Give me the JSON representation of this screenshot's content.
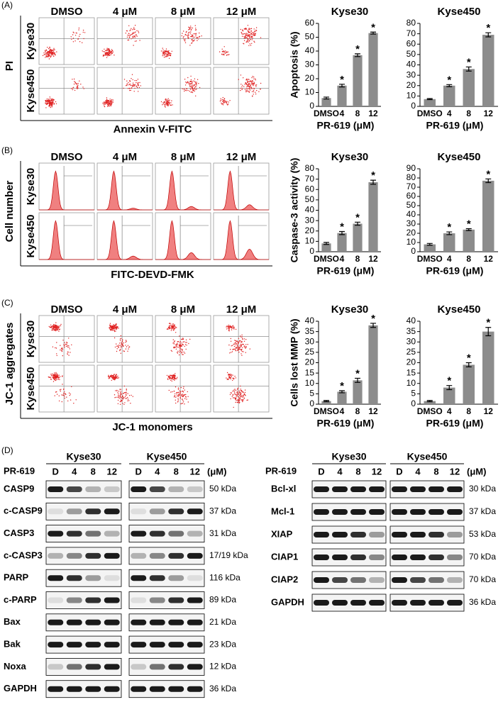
{
  "flow_panels": [
    {
      "label": "(A)",
      "conditions": [
        "DMSO",
        "4 μM",
        "8 μM",
        "12 μM"
      ],
      "cell_lines": [
        "Kyse30",
        "Kyse450"
      ],
      "y_label": "PI",
      "x_label": "Annexin V-FITC",
      "kind": "dot"
    },
    {
      "label": "(B)",
      "conditions": [
        "DMSO",
        "4 μM",
        "8 μM",
        "12 μM"
      ],
      "cell_lines": [
        "Kyse30",
        "Kyse450"
      ],
      "y_label": "Cell number",
      "x_label": "FITC-DEVD-FMK",
      "kind": "histogram"
    },
    {
      "label": "(C)",
      "conditions": [
        "DMSO",
        "4 μM",
        "8 μM",
        "12 μM"
      ],
      "cell_lines": [
        "Kyse30",
        "Kyse450"
      ],
      "y_label": "JC-1 aggregates",
      "x_label": "JC-1 monomers",
      "kind": "mmp"
    }
  ],
  "chart_data": [
    {
      "type": "bar",
      "title": "Kyse30",
      "y_label": "Apoptosis (%)",
      "x_label": "PR-619 (μM)",
      "categories": [
        "DMSO",
        "4",
        "8",
        "12"
      ],
      "values": [
        6,
        15,
        37,
        53
      ],
      "errors": [
        0.7,
        1,
        1,
        0.7
      ],
      "significance": [
        null,
        "*",
        "*",
        "*"
      ],
      "color": "#8c8c8c",
      "ylim": [
        0,
        60
      ],
      "yticks": [
        0,
        10,
        20,
        30,
        40,
        50,
        60
      ]
    },
    {
      "type": "bar",
      "title": "Kyse450",
      "x_label": "PR-619 (μM)",
      "categories": [
        "DMSO",
        "4",
        "8",
        "12"
      ],
      "values": [
        7,
        20,
        36,
        69
      ],
      "errors": [
        0.5,
        1,
        2,
        2
      ],
      "significance": [
        null,
        "*",
        "*",
        "*"
      ],
      "color": "#8c8c8c",
      "ylim": [
        0,
        80
      ],
      "yticks": [
        0,
        10,
        20,
        30,
        40,
        50,
        60,
        70,
        80
      ]
    },
    {
      "type": "bar",
      "title": "Kyse30",
      "y_label": "Caspase-3 activity (%)",
      "x_label": "PR-619 (μM)",
      "categories": [
        "DMSO",
        "4",
        "8",
        "12"
      ],
      "values": [
        8,
        18,
        27,
        67
      ],
      "errors": [
        1,
        1.5,
        1.5,
        2
      ],
      "significance": [
        null,
        "*",
        "*",
        "*"
      ],
      "color": "#8c8c8c",
      "ylim": [
        0,
        80
      ],
      "yticks": [
        0,
        10,
        20,
        30,
        40,
        50,
        60,
        70,
        80
      ]
    },
    {
      "type": "bar",
      "title": "Kyse450",
      "x_label": "PR-619 (μM)",
      "categories": [
        "DMSO",
        "4",
        "8",
        "12"
      ],
      "values": [
        8,
        20,
        24,
        77
      ],
      "errors": [
        1,
        1.5,
        1,
        2
      ],
      "significance": [
        null,
        "*",
        "*",
        "*"
      ],
      "color": "#8c8c8c",
      "ylim": [
        0,
        90
      ],
      "yticks": [
        0,
        10,
        20,
        30,
        40,
        50,
        60,
        70,
        80,
        90
      ]
    },
    {
      "type": "bar",
      "title": "Kyse30",
      "y_label": "Cells lost MMP (%)",
      "x_label": "PR-619 (μM)",
      "categories": [
        "DMSO",
        "4",
        "8",
        "12"
      ],
      "values": [
        1.5,
        6,
        11.5,
        38
      ],
      "errors": [
        0.3,
        0.5,
        1,
        1
      ],
      "significance": [
        null,
        "*",
        "*",
        "*"
      ],
      "color": "#8c8c8c",
      "ylim": [
        0,
        40
      ],
      "yticks": [
        0,
        5,
        10,
        15,
        20,
        25,
        30,
        35,
        40
      ]
    },
    {
      "type": "bar",
      "title": "Kyse450",
      "x_label": "PR-619 (μM)",
      "categories": [
        "DMSO",
        "4",
        "8",
        "12"
      ],
      "values": [
        1.5,
        8,
        19,
        35
      ],
      "errors": [
        0.3,
        1,
        1,
        2
      ],
      "significance": [
        null,
        "*",
        "*",
        "*"
      ],
      "color": "#8c8c8c",
      "ylim": [
        0,
        40
      ],
      "yticks": [
        0,
        5,
        10,
        15,
        20,
        25,
        30,
        35,
        40
      ]
    }
  ],
  "western": {
    "label": "(D)",
    "blots": [
      {
        "treatment_label": "PR-619",
        "unit": "(μM)",
        "groups": [
          {
            "name": "Kyse30",
            "lanes": [
              "D",
              "4",
              "8",
              "12"
            ]
          },
          {
            "name": "Kyse450",
            "lanes": [
              "D",
              "4",
              "8",
              "12"
            ]
          }
        ],
        "rows": [
          {
            "protein": "CASP9",
            "size": "50 kDa"
          },
          {
            "protein": "c-CASP9",
            "size": "37 kDa"
          },
          {
            "protein": "CASP3",
            "size": "31 kDa"
          },
          {
            "protein": "c-CASP3",
            "size": "17/19 kDa"
          },
          {
            "protein": "PARP",
            "size": "116 kDa"
          },
          {
            "protein": "c-PARP",
            "size": "89 kDa"
          },
          {
            "protein": "Bax",
            "size": "21 kDa"
          },
          {
            "protein": "Bak",
            "size": "23 kDa"
          },
          {
            "protein": "Noxa",
            "size": "12 kDa"
          },
          {
            "protein": "GAPDH",
            "size": "36 kDa"
          }
        ]
      },
      {
        "treatment_label": "PR-619",
        "unit": "(μM)",
        "groups": [
          {
            "name": "Kyse30",
            "lanes": [
              "D",
              "4",
              "8",
              "12"
            ]
          },
          {
            "name": "Kyse450",
            "lanes": [
              "D",
              "4",
              "8",
              "12"
            ]
          }
        ],
        "rows": [
          {
            "protein": "Bcl-xl",
            "size": "30 kDa"
          },
          {
            "protein": "Mcl-1",
            "size": "37 kDa"
          },
          {
            "protein": "XIAP",
            "size": "53 kDa"
          },
          {
            "protein": "CIAP1",
            "size": "70 kDa"
          },
          {
            "protein": "CIAP2",
            "size": "70 kDa"
          },
          {
            "protein": "GAPDH",
            "size": "36 kDa"
          }
        ]
      }
    ]
  }
}
